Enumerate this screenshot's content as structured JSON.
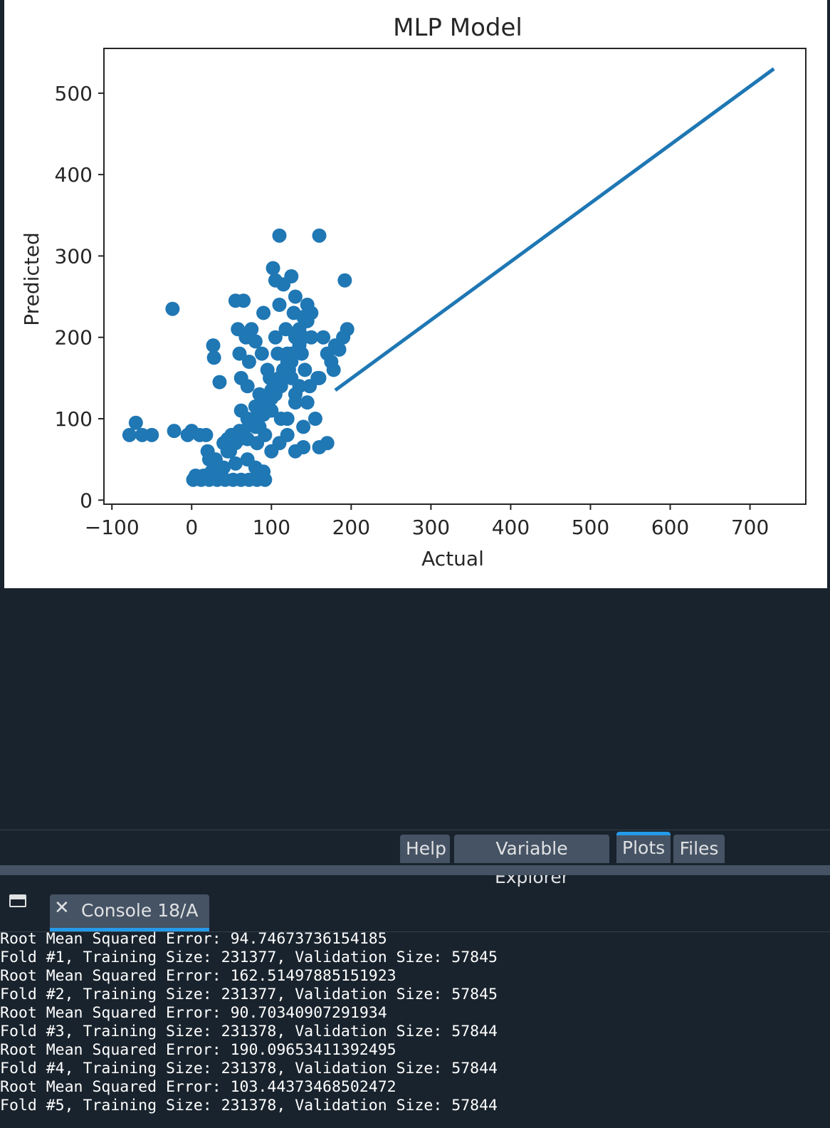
{
  "chart_data": {
    "type": "scatter",
    "title": "MLP Model",
    "xlabel": "Actual",
    "ylabel": "Predicted",
    "xlim": [
      -110,
      770
    ],
    "ylim": [
      -5,
      555
    ],
    "xticks": [
      -100,
      0,
      100,
      200,
      300,
      400,
      500,
      600,
      700
    ],
    "xtick_labels": [
      "−100",
      "0",
      "100",
      "200",
      "300",
      "400",
      "500",
      "600",
      "700"
    ],
    "yticks": [
      0,
      100,
      200,
      300,
      400,
      500
    ],
    "ytick_labels": [
      "0",
      "100",
      "200",
      "300",
      "400",
      "500"
    ],
    "grid": false,
    "color": "#1f77b4",
    "series": [
      {
        "kind": "scatter",
        "x": [
          -78,
          -70,
          -62,
          -50,
          -24,
          -22,
          -5,
          0,
          10,
          18,
          22,
          27,
          28,
          35,
          45,
          48,
          50,
          55,
          58,
          60,
          62,
          62,
          65,
          68,
          70,
          72,
          75,
          78,
          80,
          82,
          85,
          88,
          90,
          92,
          95,
          98,
          100,
          102,
          105,
          105,
          108,
          110,
          110,
          112,
          112,
          115,
          118,
          120,
          122,
          125,
          125,
          128,
          130,
          130,
          132,
          135,
          138,
          140,
          142,
          145,
          148,
          150,
          155,
          158,
          160,
          165,
          170,
          175,
          178,
          180,
          185,
          190,
          192,
          195,
          5,
          15,
          25,
          40,
          55,
          70,
          80,
          90,
          100,
          110,
          120,
          130,
          140,
          160,
          170,
          2,
          12,
          22,
          32,
          42,
          52,
          62,
          72,
          82,
          92,
          20,
          40,
          60,
          80,
          100,
          120,
          140,
          30,
          50,
          70,
          90,
          110,
          130,
          45,
          65,
          85,
          105,
          125,
          145,
          55,
          75,
          95,
          115,
          135,
          60,
          80,
          100,
          120,
          140,
          160,
          70,
          90,
          110,
          130,
          150,
          85,
          105,
          125,
          145,
          95,
          115,
          135
        ],
        "y": [
          80,
          95,
          80,
          80,
          235,
          85,
          80,
          85,
          80,
          80,
          50,
          190,
          175,
          145,
          75,
          60,
          80,
          245,
          210,
          180,
          150,
          110,
          245,
          200,
          140,
          170,
          210,
          100,
          195,
          70,
          130,
          180,
          230,
          80,
          160,
          150,
          125,
          285,
          270,
          200,
          180,
          325,
          240,
          140,
          100,
          265,
          210,
          180,
          160,
          275,
          150,
          230,
          250,
          120,
          200,
          140,
          180,
          225,
          160,
          240,
          140,
          200,
          100,
          150,
          325,
          200,
          180,
          170,
          160,
          190,
          185,
          200,
          270,
          210,
          30,
          30,
          35,
          40,
          45,
          50,
          40,
          35,
          60,
          70,
          80,
          60,
          65,
          65,
          70,
          25,
          25,
          25,
          25,
          25,
          25,
          25,
          25,
          25,
          25,
          60,
          70,
          75,
          90,
          110,
          100,
          90,
          50,
          80,
          100,
          120,
          150,
          130,
          60,
          85,
          110,
          140,
          170,
          120,
          70,
          95,
          125,
          160,
          190,
          85,
          115,
          135,
          170,
          200,
          150,
          75,
          105,
          150,
          200,
          230,
          90,
          130,
          180,
          220,
          110,
          160,
          210
        ]
      },
      {
        "kind": "line",
        "x": [
          180,
          730
        ],
        "y": [
          135,
          530
        ]
      }
    ]
  },
  "pane_tabs": [
    {
      "label": "Help",
      "active": false
    },
    {
      "label": "Variable Explorer",
      "active": false
    },
    {
      "label": "Plots",
      "active": true
    },
    {
      "label": "Files",
      "active": false
    }
  ],
  "console": {
    "tab_label": "Console 18/A",
    "close_glyph": "✕",
    "lines": [
      "Root Mean Squared Error: 94.74673736154185",
      "Fold #1, Training Size: 231377, Validation Size: 57845",
      "Root Mean Squared Error: 162.51497885151923",
      "Fold #2, Training Size: 231377, Validation Size: 57845",
      "Root Mean Squared Error: 90.70340907291934",
      "Fold #3, Training Size: 231378, Validation Size: 57844",
      "Root Mean Squared Error: 190.09653411392495",
      "Fold #4, Training Size: 231378, Validation Size: 57844",
      "Root Mean Squared Error: 103.44373468502472",
      "Fold #5, Training Size: 231378, Validation Size: 57844"
    ]
  }
}
